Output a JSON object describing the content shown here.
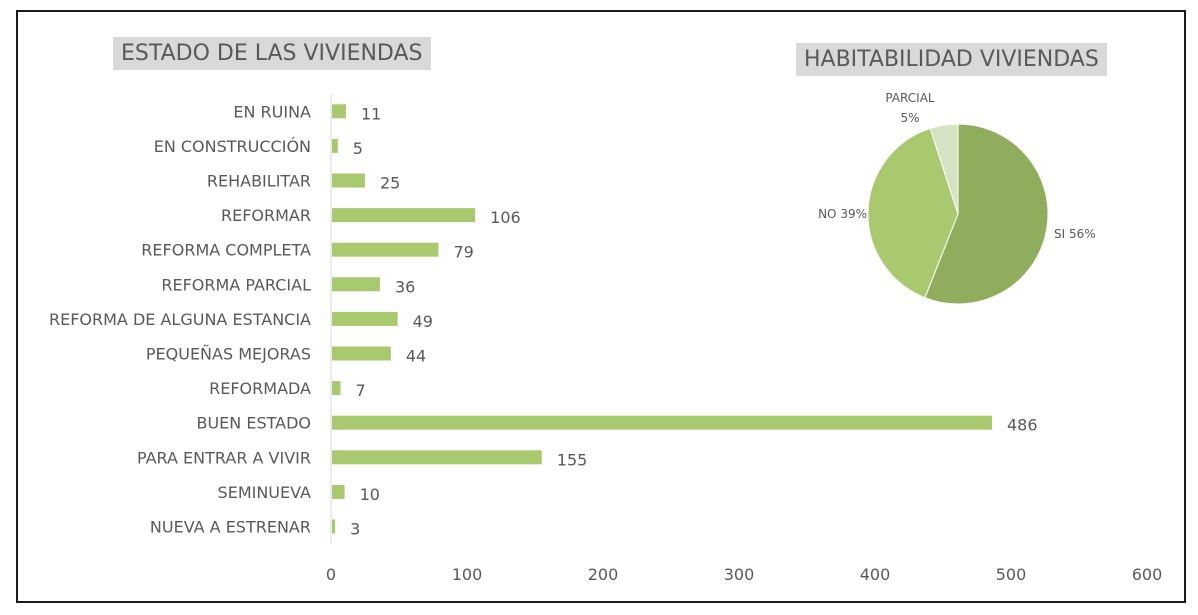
{
  "colors": {
    "bar": "#a9c96e",
    "label_text": "#595959",
    "axis_line": "#d9d9d9",
    "pie_si": "#8fad5c",
    "pie_no": "#a9c96e",
    "pie_parcial": "#d6e3c3",
    "title_bg": "#d9d9d9",
    "frame": "#1a1a1a"
  },
  "chart_data": [
    {
      "type": "bar",
      "orientation": "horizontal",
      "title": "ESTADO DE LAS VIVIENDAS",
      "categories": [
        "EN RUINA",
        "EN CONSTRUCCIÓN",
        "REHABILITAR",
        "REFORMAR",
        "REFORMA COMPLETA",
        "REFORMA PARCIAL",
        "REFORMA DE ALGUNA ESTANCIA",
        "PEQUEÑAS MEJORAS",
        "REFORMADA",
        "BUEN ESTADO",
        "PARA ENTRAR A VIVIR",
        "SEMINUEVA",
        "NUEVA A ESTRENAR"
      ],
      "values": [
        11,
        5,
        25,
        106,
        79,
        36,
        49,
        44,
        7,
        486,
        155,
        10,
        3
      ],
      "xlim": [
        0,
        600
      ],
      "xticks": [
        0,
        100,
        200,
        300,
        400,
        500,
        600
      ],
      "grid": false,
      "data_labels": true
    },
    {
      "type": "pie",
      "title": "HABITABILIDAD VIVIENDAS",
      "slices": [
        {
          "label": "SI",
          "value": 56,
          "text": "SI 56%"
        },
        {
          "label": "NO",
          "value": 39,
          "text": "NO 39%"
        },
        {
          "label": "PARCIAL",
          "value": 5,
          "text_line1": "PARCIAL",
          "text_line2": "5%"
        }
      ]
    }
  ]
}
